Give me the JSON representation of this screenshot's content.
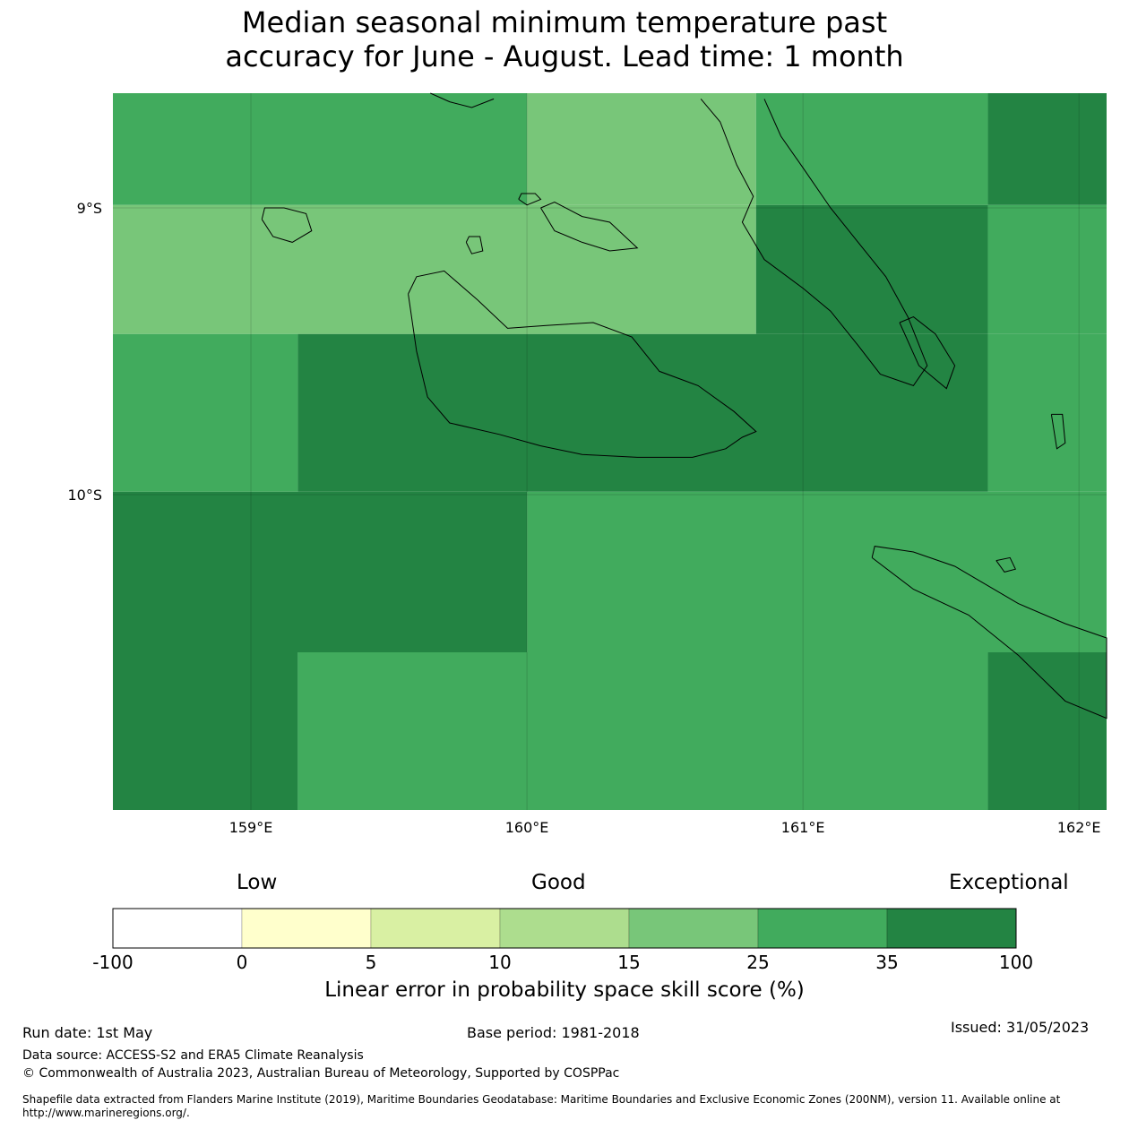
{
  "title": {
    "line1": "Median seasonal minimum temperature past",
    "line2": "accuracy for June - August. Lead time: 1 month"
  },
  "map": {
    "lon_range": [
      158.5,
      162.1
    ],
    "lat_range": [
      -11.1,
      -8.6
    ],
    "lon_ticks": [
      {
        "value": 159,
        "label": "159°E"
      },
      {
        "value": 160,
        "label": "160°E"
      },
      {
        "value": 161,
        "label": "161°E"
      },
      {
        "value": 162,
        "label": "162°E"
      }
    ],
    "lat_ticks": [
      {
        "value": -9,
        "label": "9°S"
      },
      {
        "value": -10,
        "label": "10°S"
      }
    ],
    "grid_lines": true,
    "cells": [
      {
        "lon": [
          158.5,
          160.0
        ],
        "lat": [
          -8.99,
          -8.6
        ],
        "class": "25-35"
      },
      {
        "lon": [
          160.0,
          160.83
        ],
        "lat": [
          -8.99,
          -8.6
        ],
        "class": "15-25"
      },
      {
        "lon": [
          160.83,
          161.67
        ],
        "lat": [
          -8.99,
          -8.6
        ],
        "class": "25-35"
      },
      {
        "lon": [
          161.67,
          162.1
        ],
        "lat": [
          -8.99,
          -8.6
        ],
        "class": "35-100"
      },
      {
        "lon": [
          158.5,
          160.83
        ],
        "lat": [
          -9.44,
          -8.99
        ],
        "class": "15-25"
      },
      {
        "lon": [
          160.83,
          161.67
        ],
        "lat": [
          -9.44,
          -8.99
        ],
        "class": "35-100"
      },
      {
        "lon": [
          161.67,
          162.1
        ],
        "lat": [
          -9.44,
          -8.99
        ],
        "class": "25-35"
      },
      {
        "lon": [
          158.5,
          159.17
        ],
        "lat": [
          -9.99,
          -9.44
        ],
        "class": "25-35"
      },
      {
        "lon": [
          159.17,
          161.67
        ],
        "lat": [
          -9.99,
          -9.44
        ],
        "class": "35-100"
      },
      {
        "lon": [
          161.67,
          162.1
        ],
        "lat": [
          -9.99,
          -9.44
        ],
        "class": "25-35"
      },
      {
        "lon": [
          158.5,
          160.0
        ],
        "lat": [
          -10.55,
          -9.99
        ],
        "class": "35-100"
      },
      {
        "lon": [
          160.0,
          162.1
        ],
        "lat": [
          -10.55,
          -9.99
        ],
        "class": "25-35"
      },
      {
        "lon": [
          158.5,
          159.17
        ],
        "lat": [
          -11.1,
          -10.55
        ],
        "class": "35-100"
      },
      {
        "lon": [
          159.17,
          161.67
        ],
        "lat": [
          -11.1,
          -10.55
        ],
        "class": "25-35"
      },
      {
        "lon": [
          161.67,
          162.1
        ],
        "lat": [
          -11.1,
          -10.55
        ],
        "class": "35-100"
      }
    ],
    "class_colors": {
      "-100-0": "#ffffff",
      "0-5": "#ffffcc",
      "5-10": "#d9f0a3",
      "10-15": "#addd8e",
      "15-25": "#78c679",
      "25-35": "#41ab5d",
      "35-100": "#238443"
    },
    "coastlines": [
      {
        "name": "Guadalcanal",
        "coords": [
          [
            159.57,
            -9.3
          ],
          [
            159.6,
            -9.5
          ],
          [
            159.64,
            -9.66
          ],
          [
            159.72,
            -9.75
          ],
          [
            159.9,
            -9.79
          ],
          [
            160.05,
            -9.83
          ],
          [
            160.2,
            -9.86
          ],
          [
            160.4,
            -9.87
          ],
          [
            160.6,
            -9.87
          ],
          [
            160.72,
            -9.84
          ],
          [
            160.78,
            -9.8
          ],
          [
            160.83,
            -9.78
          ],
          [
            160.75,
            -9.71
          ],
          [
            160.62,
            -9.62
          ],
          [
            160.48,
            -9.57
          ],
          [
            160.38,
            -9.45
          ],
          [
            160.24,
            -9.4
          ],
          [
            160.07,
            -9.41
          ],
          [
            159.93,
            -9.42
          ],
          [
            159.82,
            -9.32
          ],
          [
            159.7,
            -9.22
          ],
          [
            159.6,
            -9.24
          ],
          [
            159.57,
            -9.3
          ]
        ]
      },
      {
        "name": "Malaita",
        "coords": [
          [
            160.63,
            -8.62
          ],
          [
            160.7,
            -8.7
          ],
          [
            160.76,
            -8.85
          ],
          [
            160.82,
            -8.96
          ],
          [
            160.78,
            -9.05
          ],
          [
            160.86,
            -9.18
          ],
          [
            161.0,
            -9.28
          ],
          [
            161.1,
            -9.36
          ],
          [
            161.2,
            -9.48
          ],
          [
            161.28,
            -9.58
          ],
          [
            161.4,
            -9.62
          ],
          [
            161.45,
            -9.55
          ],
          [
            161.38,
            -9.38
          ],
          [
            161.3,
            -9.24
          ],
          [
            161.2,
            -9.12
          ],
          [
            161.1,
            -9.0
          ],
          [
            161.0,
            -8.86
          ],
          [
            160.92,
            -8.75
          ],
          [
            160.86,
            -8.62
          ]
        ]
      },
      {
        "name": "Small Malaita",
        "coords": [
          [
            161.35,
            -9.4
          ],
          [
            161.42,
            -9.55
          ],
          [
            161.52,
            -9.63
          ],
          [
            161.55,
            -9.55
          ],
          [
            161.48,
            -9.44
          ],
          [
            161.4,
            -9.38
          ],
          [
            161.35,
            -9.4
          ]
        ]
      },
      {
        "name": "Makira",
        "coords": [
          [
            161.25,
            -10.22
          ],
          [
            161.4,
            -10.33
          ],
          [
            161.6,
            -10.42
          ],
          [
            161.78,
            -10.56
          ],
          [
            161.95,
            -10.72
          ],
          [
            162.1,
            -10.78
          ],
          [
            162.1,
            -10.5
          ],
          [
            161.95,
            -10.45
          ],
          [
            161.78,
            -10.38
          ],
          [
            161.55,
            -10.25
          ],
          [
            161.4,
            -10.2
          ],
          [
            161.26,
            -10.18
          ],
          [
            161.25,
            -10.22
          ]
        ]
      },
      {
        "name": "Ulawa",
        "coords": [
          [
            161.9,
            -9.72
          ],
          [
            161.92,
            -9.84
          ],
          [
            161.95,
            -9.82
          ],
          [
            161.94,
            -9.72
          ],
          [
            161.9,
            -9.72
          ]
        ]
      },
      {
        "name": "Nggela",
        "coords": [
          [
            160.05,
            -9.0
          ],
          [
            160.1,
            -9.08
          ],
          [
            160.2,
            -9.12
          ],
          [
            160.3,
            -9.15
          ],
          [
            160.4,
            -9.14
          ],
          [
            160.3,
            -9.05
          ],
          [
            160.2,
            -9.03
          ],
          [
            160.1,
            -8.98
          ],
          [
            160.05,
            -9.0
          ]
        ]
      },
      {
        "name": "Russell Islands",
        "coords": [
          [
            159.04,
            -9.04
          ],
          [
            159.08,
            -9.1
          ],
          [
            159.15,
            -9.12
          ],
          [
            159.22,
            -9.08
          ],
          [
            159.2,
            -9.02
          ],
          [
            159.12,
            -9.0
          ],
          [
            159.05,
            -9.0
          ],
          [
            159.04,
            -9.04
          ]
        ]
      },
      {
        "name": "Savo",
        "coords": [
          [
            159.78,
            -9.12
          ],
          [
            159.8,
            -9.16
          ],
          [
            159.84,
            -9.15
          ],
          [
            159.83,
            -9.1
          ],
          [
            159.79,
            -9.1
          ],
          [
            159.78,
            -9.12
          ]
        ]
      },
      {
        "name": "Florida north",
        "coords": [
          [
            159.97,
            -8.97
          ],
          [
            160.0,
            -8.99
          ],
          [
            160.05,
            -8.97
          ],
          [
            160.03,
            -8.95
          ],
          [
            159.98,
            -8.95
          ],
          [
            159.97,
            -8.97
          ]
        ]
      },
      {
        "name": "Isabel tip",
        "coords": [
          [
            159.65,
            -8.6
          ],
          [
            159.72,
            -8.63
          ],
          [
            159.8,
            -8.65
          ],
          [
            159.88,
            -8.62
          ]
        ]
      },
      {
        "name": "Ugi",
        "coords": [
          [
            161.7,
            -10.23
          ],
          [
            161.73,
            -10.27
          ],
          [
            161.77,
            -10.26
          ],
          [
            161.75,
            -10.22
          ],
          [
            161.7,
            -10.23
          ]
        ]
      }
    ]
  },
  "legend": {
    "words": {
      "low": "Low",
      "good": "Good",
      "exceptional": "Exceptional"
    },
    "ticks": [
      "-100",
      "0",
      "5",
      "10",
      "15",
      "25",
      "35",
      "100"
    ],
    "colors": [
      "#ffffff",
      "#ffffcc",
      "#d9f0a3",
      "#addd8e",
      "#78c679",
      "#41ab5d",
      "#238443"
    ],
    "label": "Linear error in probability space skill score (%)"
  },
  "footer": {
    "run_date": "Run date: 1st May",
    "base_period": "Base period: 1981-2018",
    "issued": "Issued: 31/05/2023",
    "data_source": "Data source: ACCESS-S2 and ERA5 Climate Reanalysis",
    "copyright": "© Commonwealth of Australia 2023, Australian Bureau of Meteorology, Supported by COSPPac",
    "shapefile_line1": "Shapefile data extracted from Flanders Marine Institute (2019), Maritime Boundaries Geodatabase: Maritime Boundaries and Exclusive Economic Zones (200NM), version 11. Available online at",
    "shapefile_line2": "http://www.marineregions.org/."
  }
}
